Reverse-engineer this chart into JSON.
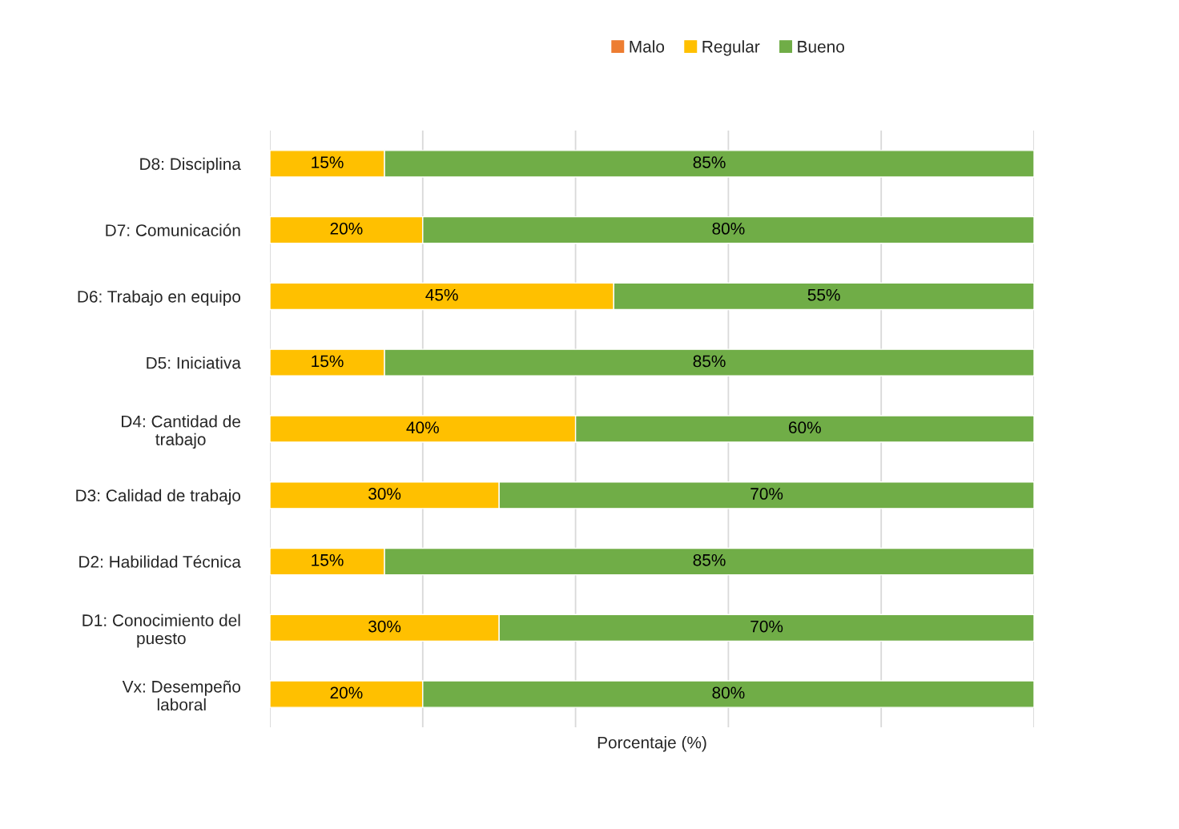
{
  "chart_data": {
    "type": "bar",
    "orientation": "horizontal",
    "stacked": true,
    "categories": [
      "D8: Disciplina",
      "D7: Comunicación",
      "D6: Trabajo en equipo",
      "D5: Iniciativa",
      "D4: Cantidad de\ntrabajo",
      "D3: Calidad de trabajo",
      "D2: Habilidad Técnica",
      "D1: Conocimiento del\npuesto",
      "Vx: Desempeño\nlaboral"
    ],
    "series": [
      {
        "name": "Malo",
        "color": "#ed7d31",
        "values": [
          0,
          0,
          0,
          0,
          0,
          0,
          0,
          0,
          0
        ],
        "value_labels": [
          null,
          null,
          null,
          null,
          null,
          null,
          null,
          null,
          null
        ]
      },
      {
        "name": "Regular",
        "color": "#ffc000",
        "values": [
          15,
          20,
          45,
          15,
          40,
          30,
          15,
          30,
          20
        ],
        "value_labels": [
          "15%",
          "20%",
          "45%",
          "15%",
          "40%",
          "30%",
          "15%",
          "30%",
          "20%"
        ]
      },
      {
        "name": "Bueno",
        "color": "#70ad47",
        "values": [
          85,
          80,
          55,
          85,
          60,
          70,
          85,
          70,
          80
        ],
        "value_labels": [
          "85%",
          "80%",
          "55%",
          "85%",
          "60%",
          "70%",
          "85%",
          "70%",
          "80%"
        ]
      }
    ],
    "xlabel": "Porcentaje (%)",
    "xlim": [
      0,
      100
    ],
    "xticks": [
      {
        "value": 0,
        "label": null
      },
      {
        "value": 20,
        "label": null
      },
      {
        "value": 40,
        "label": null
      },
      {
        "value": 60,
        "label": null
      },
      {
        "value": 80,
        "label": null
      },
      {
        "value": 100,
        "label": null
      }
    ],
    "tick_labels": "y",
    "grid": "x",
    "legend": "top"
  }
}
